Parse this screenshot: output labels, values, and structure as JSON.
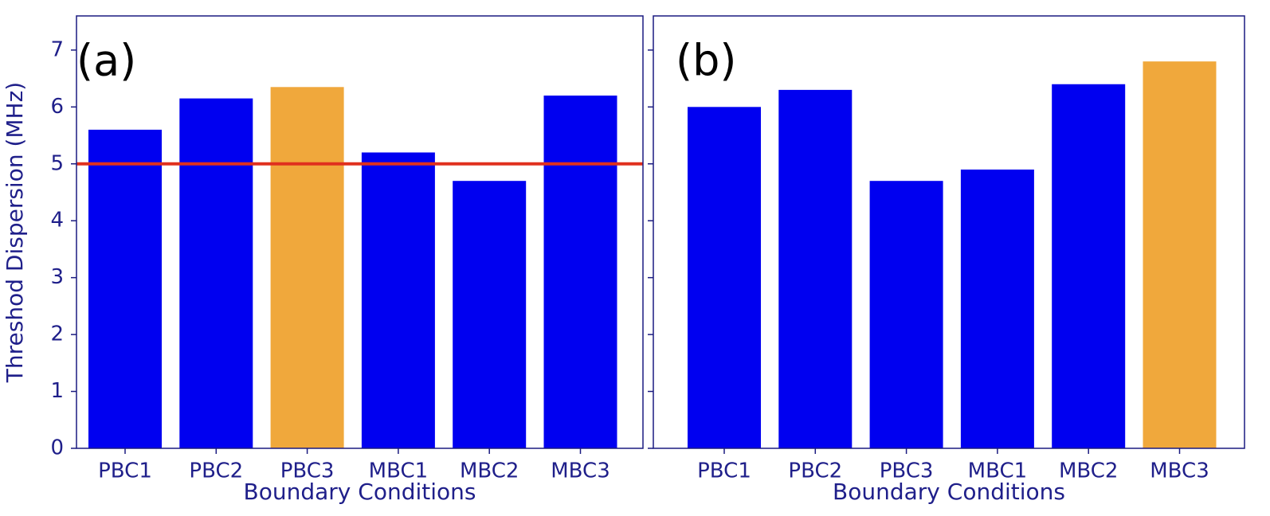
{
  "chart_data": [
    {
      "type": "bar",
      "title": "(a)",
      "xlabel": "Boundary Conditions",
      "ylabel": "Threshod Dispersion (MHz)",
      "categories": [
        "PBC1",
        "PBC2",
        "PBC3",
        "MBC1",
        "MBC2",
        "MBC3"
      ],
      "values": [
        5.6,
        6.15,
        6.35,
        5.2,
        4.7,
        6.2
      ],
      "colors": [
        "#0000f0",
        "#0000f0",
        "#f0a83c",
        "#0000f0",
        "#0000f0",
        "#0000f0"
      ],
      "hline": {
        "value": 5,
        "color": "#e0301e"
      },
      "ylim": [
        0,
        7.6
      ],
      "yticks": [
        0,
        1,
        2,
        3,
        4,
        5,
        6,
        7
      ],
      "ytick_labels": true
    },
    {
      "type": "bar",
      "title": "(b)",
      "xlabel": "Boundary Conditions",
      "categories": [
        "PBC1",
        "PBC2",
        "PBC3",
        "MBC1",
        "MBC2",
        "MBC3"
      ],
      "values": [
        6.0,
        6.3,
        4.7,
        4.9,
        6.4,
        6.8
      ],
      "colors": [
        "#0000f0",
        "#0000f0",
        "#0000f0",
        "#0000f0",
        "#0000f0",
        "#f0a83c"
      ],
      "ylim": [
        0,
        7.6
      ],
      "yticks": [
        0,
        1,
        2,
        3,
        4,
        5,
        6,
        7
      ],
      "ytick_labels": false
    }
  ]
}
